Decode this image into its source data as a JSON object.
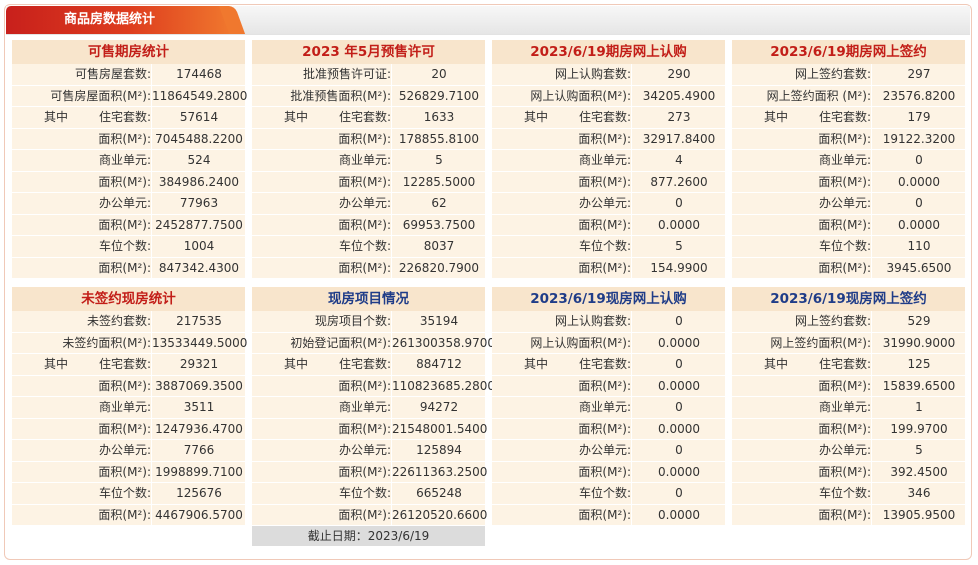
{
  "header": {
    "title": "商品房数据统计"
  },
  "panels": [
    {
      "title": "可售期房统计",
      "color": "red",
      "rows": [
        {
          "label": "可售房屋套数:",
          "value": "174468"
        },
        {
          "label": "可售房屋面积(M²):",
          "value": "11864549.2800"
        },
        {
          "pre": "其中",
          "label": "住宅套数:",
          "value": "57614"
        },
        {
          "label": "面积(M²):",
          "value": "7045488.2200"
        },
        {
          "label": "商业单元:",
          "value": "524"
        },
        {
          "label": "面积(M²):",
          "value": "384986.2400"
        },
        {
          "label": "办公单元:",
          "value": "77963"
        },
        {
          "label": "面积(M²):",
          "value": "2452877.7500"
        },
        {
          "label": "车位个数:",
          "value": "1004"
        },
        {
          "label": "面积(M²):",
          "value": "847342.4300"
        }
      ]
    },
    {
      "title": "2023 年5月预售许可",
      "color": "red",
      "rows": [
        {
          "label": "批准预售许可证:",
          "value": "20"
        },
        {
          "label": "批准预售面积(M²):",
          "value": "526829.7100"
        },
        {
          "pre": "其中",
          "label": "住宅套数:",
          "value": "1633"
        },
        {
          "label": "面积(M²):",
          "value": "178855.8100"
        },
        {
          "label": "商业单元:",
          "value": "5"
        },
        {
          "label": "面积(M²):",
          "value": "12285.5000"
        },
        {
          "label": "办公单元:",
          "value": "62"
        },
        {
          "label": "面积(M²):",
          "value": "69953.7500"
        },
        {
          "label": "车位个数:",
          "value": "8037"
        },
        {
          "label": "面积(M²):",
          "value": "226820.7900"
        }
      ]
    },
    {
      "title": "2023/6/19期房网上认购",
      "color": "red",
      "rows": [
        {
          "label": "网上认购套数:",
          "value": "290"
        },
        {
          "label": "网上认购面积(M²):",
          "value": "34205.4900"
        },
        {
          "pre": "其中",
          "label": "住宅套数:",
          "value": "273"
        },
        {
          "label": "面积(M²):",
          "value": "32917.8400"
        },
        {
          "label": "商业单元:",
          "value": "4"
        },
        {
          "label": "面积(M²):",
          "value": "877.2600"
        },
        {
          "label": "办公单元:",
          "value": "0"
        },
        {
          "label": "面积(M²):",
          "value": "0.0000"
        },
        {
          "label": "车位个数:",
          "value": "5"
        },
        {
          "label": "面积(M²):",
          "value": "154.9900"
        }
      ]
    },
    {
      "title": "2023/6/19期房网上签约",
      "color": "red",
      "rows": [
        {
          "label": "网上签约套数:",
          "value": "297"
        },
        {
          "label": "网上签约面积 (M²):",
          "value": "23576.8200"
        },
        {
          "pre": "其中",
          "label": "住宅套数:",
          "value": "179"
        },
        {
          "label": "面积(M²):",
          "value": "19122.3200"
        },
        {
          "label": "商业单元:",
          "value": "0"
        },
        {
          "label": "面积(M²):",
          "value": "0.0000"
        },
        {
          "label": "办公单元:",
          "value": "0"
        },
        {
          "label": "面积(M²):",
          "value": "0.0000"
        },
        {
          "label": "车位个数:",
          "value": "110"
        },
        {
          "label": "面积(M²):",
          "value": "3945.6500"
        }
      ]
    },
    {
      "title": "未签约现房统计",
      "color": "red",
      "rows": [
        {
          "label": "未签约套数:",
          "value": "217535"
        },
        {
          "label": "未签约面积(M²):",
          "value": "13533449.5000"
        },
        {
          "pre": "其中",
          "label": "住宅套数:",
          "value": "29321"
        },
        {
          "label": "面积(M²):",
          "value": "3887069.3500"
        },
        {
          "label": "商业单元:",
          "value": "3511"
        },
        {
          "label": "面积(M²):",
          "value": "1247936.4700"
        },
        {
          "label": "办公单元:",
          "value": "7766"
        },
        {
          "label": "面积(M²):",
          "value": "1998899.7100"
        },
        {
          "label": "车位个数:",
          "value": "125676"
        },
        {
          "label": "面积(M²):",
          "value": "4467906.5700"
        }
      ]
    },
    {
      "title": "现房项目情况",
      "color": "blue",
      "rows": [
        {
          "label": "现房项目个数:",
          "value": "35194"
        },
        {
          "label": "初始登记面积(M²):",
          "value": "261300358.9700"
        },
        {
          "pre": "其中",
          "label": "住宅套数:",
          "value": "884712"
        },
        {
          "label": "面积(M²):",
          "value": "110823685.2800"
        },
        {
          "label": "商业单元:",
          "value": "94272"
        },
        {
          "label": "面积(M²):",
          "value": "21548001.5400"
        },
        {
          "label": "办公单元:",
          "value": "125894"
        },
        {
          "label": "面积(M²):",
          "value": "22611363.2500"
        },
        {
          "label": "车位个数:",
          "value": "665248"
        },
        {
          "label": "面积(M²):",
          "value": "26120520.6600"
        }
      ],
      "footer": "截止日期：2023/6/19"
    },
    {
      "title": "2023/6/19现房网上认购",
      "color": "blue",
      "rows": [
        {
          "label": "网上认购套数:",
          "value": "0"
        },
        {
          "label": "网上认购面积(M²):",
          "value": "0.0000"
        },
        {
          "pre": "其中",
          "label": "住宅套数:",
          "value": "0"
        },
        {
          "label": "面积(M²):",
          "value": "0.0000"
        },
        {
          "label": "商业单元:",
          "value": "0"
        },
        {
          "label": "面积(M²):",
          "value": "0.0000"
        },
        {
          "label": "办公单元:",
          "value": "0"
        },
        {
          "label": "面积(M²):",
          "value": "0.0000"
        },
        {
          "label": "车位个数:",
          "value": "0"
        },
        {
          "label": "面积(M²):",
          "value": "0.0000"
        }
      ]
    },
    {
      "title": "2023/6/19现房网上签约",
      "color": "blue",
      "rows": [
        {
          "label": "网上签约套数:",
          "value": "529"
        },
        {
          "label": "网上签约面积(M²):",
          "value": "31990.9000"
        },
        {
          "pre": "其中",
          "label": "住宅套数:",
          "value": "125"
        },
        {
          "label": "面积(M²):",
          "value": "15839.6500"
        },
        {
          "label": "商业单元:",
          "value": "1"
        },
        {
          "label": "面积(M²):",
          "value": "199.9700"
        },
        {
          "label": "办公单元:",
          "value": "5"
        },
        {
          "label": "面积(M²):",
          "value": "392.4500"
        },
        {
          "label": "车位个数:",
          "value": "346"
        },
        {
          "label": "面积(M²):",
          "value": "13905.9500"
        }
      ]
    }
  ]
}
